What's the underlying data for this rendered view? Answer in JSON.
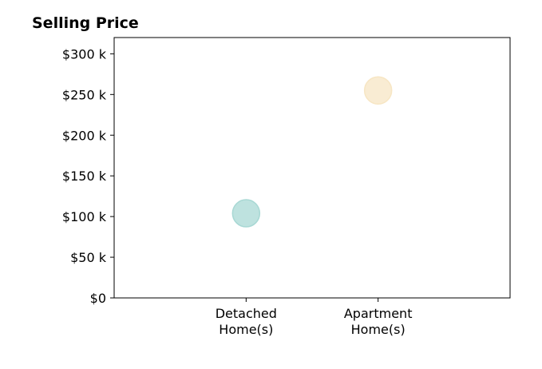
{
  "chart_data": {
    "type": "scatter",
    "title": "Selling Price",
    "xlabel": "",
    "ylabel": "",
    "categories": [
      "Detached\nHome(s)",
      "Apartment\nHome(s)"
    ],
    "values": [
      104000,
      255000
    ],
    "point_colors": [
      "#a8d8d4",
      "#f7e6c4"
    ],
    "y_tick_labels": [
      "$0",
      "$50 k",
      "$100 k",
      "$150 k",
      "$200 k",
      "$250 k",
      "$300 k"
    ],
    "y_tick_values": [
      0,
      50000,
      100000,
      150000,
      200000,
      250000,
      300000
    ],
    "ylim": [
      0,
      320000
    ],
    "xlim": [
      0,
      3
    ],
    "category_positions": [
      1,
      2
    ],
    "grid": false,
    "legend": "none"
  }
}
